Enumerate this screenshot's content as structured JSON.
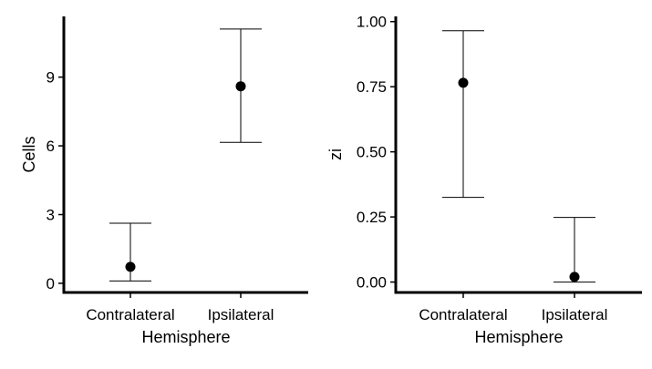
{
  "chart_data": [
    {
      "type": "scatter",
      "error_bars": true,
      "categories": [
        "Contralateral",
        "Ipsilateral"
      ],
      "estimates": [
        0.72,
        8.6
      ],
      "lower": [
        0.1,
        6.15
      ],
      "upper": [
        2.62,
        11.1
      ],
      "xlabel": "Hemisphere",
      "ylabel": "Cells",
      "yticks": [
        0,
        3,
        6,
        9
      ],
      "ytick_labels": [
        "0",
        "3",
        "6",
        "9"
      ],
      "ylim": [
        -0.4,
        11.65
      ],
      "grid": false,
      "legend": "none"
    },
    {
      "type": "scatter",
      "error_bars": true,
      "categories": [
        "Contralateral",
        "Ipsilateral"
      ],
      "estimates": [
        0.765,
        0.02
      ],
      "lower": [
        0.325,
        0.0
      ],
      "upper": [
        0.965,
        0.248
      ],
      "xlabel": "Hemisphere",
      "ylabel": "zi",
      "yticks": [
        0.0,
        0.25,
        0.5,
        0.75,
        1.0
      ],
      "ytick_labels": [
        "0.00",
        "0.25",
        "0.50",
        "0.75",
        "1.00"
      ],
      "ylim": [
        -0.04,
        1.02
      ],
      "grid": false,
      "legend": "none"
    }
  ]
}
